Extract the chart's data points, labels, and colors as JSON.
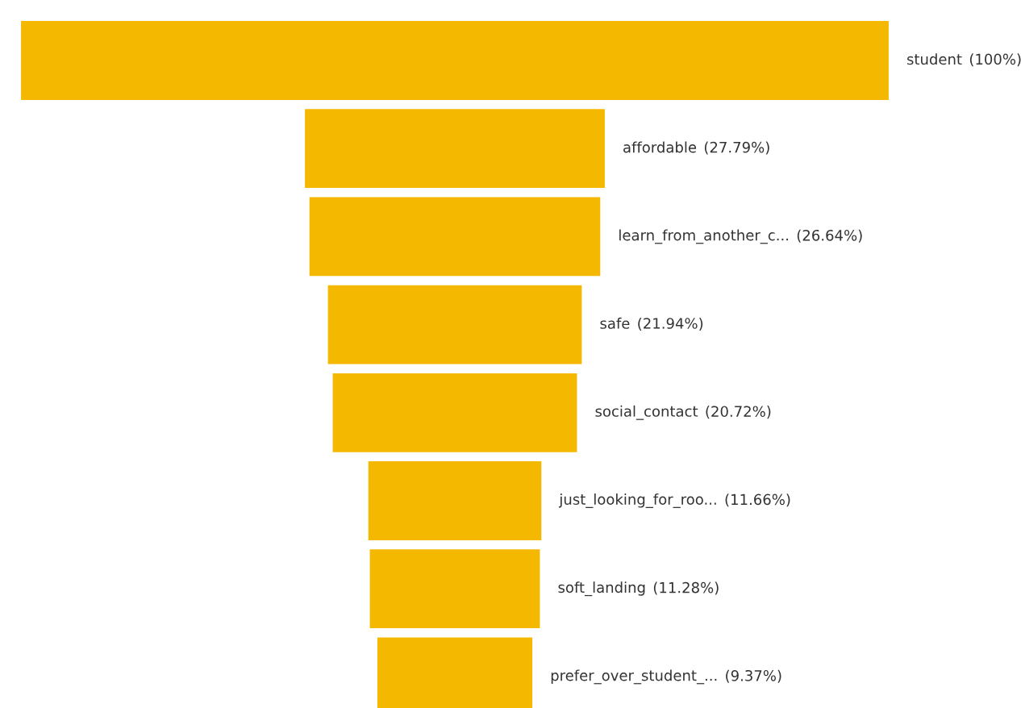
{
  "chart_data": {
    "type": "other",
    "categories": [
      "student",
      "affordable",
      "learn_from_another_c...",
      "safe",
      "social_contact",
      "just_looking_for_roo...",
      "soft_landing",
      "prefer_over_student_..."
    ],
    "values": [
      100,
      27.79,
      26.64,
      21.94,
      20.72,
      11.66,
      11.28,
      9.37
    ],
    "value_labels": [
      "(100%)",
      "(27.79%)",
      "(26.64%)",
      "(21.94%)",
      "(20.72%)",
      "(11.66%)",
      "(11.28%)",
      "(9.37%)"
    ],
    "color": "#f4b800"
  }
}
